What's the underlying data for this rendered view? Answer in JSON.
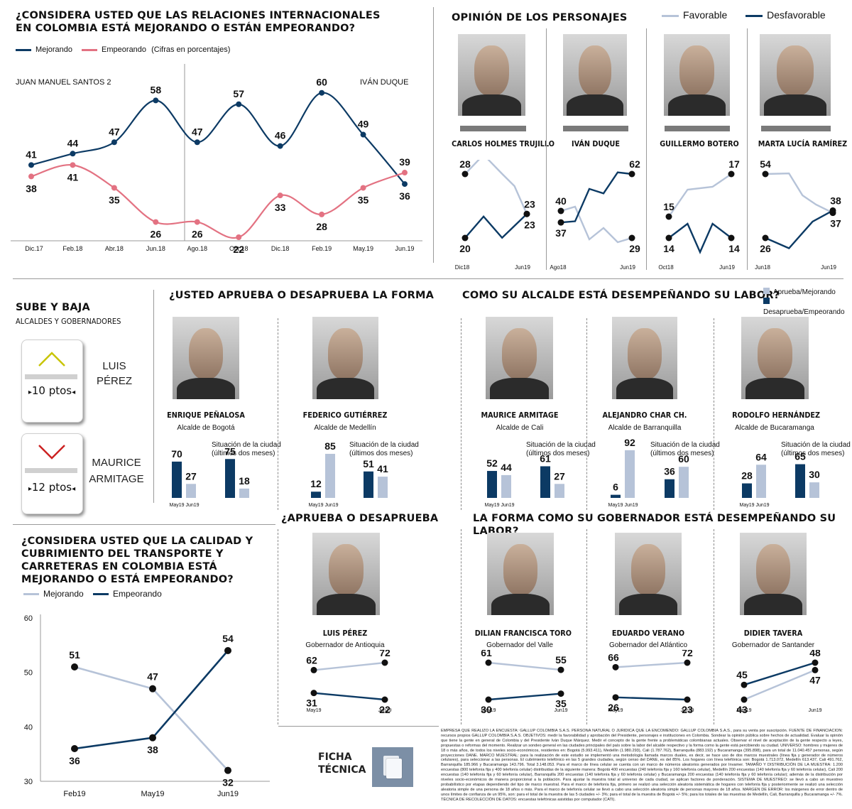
{
  "relations": {
    "title_line1": "¿CONSIDERA USTED QUE LAS RELACIONES INTERNACIONALES",
    "title_line2": "EN COLOMBIA ESTÁ MEJORANDO O ESTÁN EMPEORANDO?",
    "legend_mejorando": "Mejorando",
    "legend_empeorando": "Empeorando",
    "legend_note": "(Cifras en porcentajes)",
    "period_left": "JUAN MANUEL SANTOS 2",
    "period_right": "IVÁN DUQUE"
  },
  "personajes": {
    "title": "OPINIÓN DE LOS PERSONAJES",
    "legend_favorable": "Favorable",
    "legend_desfavorable": "Desfavorable",
    "people": [
      {
        "name": "CARLOS HOLMES TRUJILLO",
        "x_start": "Dic18",
        "x_end": "Jun19"
      },
      {
        "name": "IVÁN DUQUE",
        "x_start": "Ago18",
        "x_end": "Jun19"
      },
      {
        "name": "GUILLERMO BOTERO",
        "x_start": "Oct18",
        "x_end": "Jun19"
      },
      {
        "name": "MARTA LUCÍA RAMÍREZ",
        "x_start": "Jun18",
        "x_end": "Jun19"
      }
    ]
  },
  "subebaja": {
    "title": "SUBE Y BAJA",
    "subtitle": "ALCALDES Y GOBERNADORES",
    "up_value": "10 ptos",
    "up_name_1": "LUIS",
    "up_name_2": "PÉREZ",
    "down_value": "12 ptos",
    "down_name_1": "MAURICE",
    "down_name_2": "ARMITAGE"
  },
  "forma": {
    "title": "¿USTED APRUEBA O DESAPRUEBA LA FORMA",
    "title2": "COMO SU ALCALDE ESTÁ DESEMPEÑANDO SU LABOR?",
    "legend_aprueba": "Aprueba/Mejorando",
    "legend_desaprueba": "Desaprueba/Empeorando",
    "situacion_1": "Situación de la ciudad",
    "situacion_2": "(últimos dos meses)",
    "label_may": "May19",
    "label_jun": "Jun19",
    "mayors": [
      {
        "name": "ENRIQUE PEÑALOSA",
        "role": "Alcalde de Bogotá"
      },
      {
        "name": "FEDERICO GUTIÉRREZ",
        "role": "Alcalde de Medellín"
      },
      {
        "name": "MAURICE ARMITAGE",
        "role": "Alcalde de Cali"
      },
      {
        "name": "ALEJANDRO CHAR CH.",
        "role": "Alcalde de Barranquilla"
      },
      {
        "name": "RODOLFO HERNÁNDEZ",
        "role": "Alcalde de Bucaramanga"
      }
    ]
  },
  "gobernador": {
    "title_left": "¿APRUEBA O DESAPRUEBA",
    "title_right": "LA FORMA COMO SU GOBERNADOR  ESTÁ DESEMPEÑANDO SU LABOR?",
    "label_may": "May19",
    "label_jun": "Jun19",
    "governors": [
      {
        "name": "LUIS PÉREZ",
        "role": "Gobernador de Antioquia"
      },
      {
        "name": "DILIAN FRANCISCA TORO",
        "role": "Gobernador del Valle"
      },
      {
        "name": "EDUARDO VERANO",
        "role": "Gobernador del Atlántico"
      },
      {
        "name": "DIDIER TAVERA",
        "role": "Gobernador de Santander"
      }
    ]
  },
  "transporte": {
    "title_line1": "¿CONSIDERA USTED QUE LA CALIDAD Y",
    "title_line2": "CUBRIMIENTO DEL TRANSPORTE Y",
    "title_line3": "CARRETERAS EN COLOMBIA ESTÁ",
    "title_line4": "MEJORANDO O ESTÁ EMPEORANDO?",
    "legend_mejorando": "Mejorando",
    "legend_empeorando": "Empeorando"
  },
  "ficha": {
    "label_1": "FICHA",
    "label_2": "TÉCNICA",
    "text": "EMPRESA QUE REALIZÓ LA ENCUESTA: GALLUP COLOMBIA S.A.S. PERSONA NATURAL O JURÍDICA QUE LA ENCOMENDÓ: GALLUP COLOMBIA S.A.S., para su venta por suscripción. FUENTE DE FINANCIACIÓN: recursos propios GALLUP COLOMBIA S.A.S. OBJETIVOS: medir la favorabilidad y aprobación del Presidente, personajes e instituciones en Colombia. Sondear la opinión pública sobre hechos de actualidad. Evaluar la opinión que tiene la gente en general de Colombia y del Presidente Iván Duque Márquez. Medir el concepto de la gente frente a problemáticas colombianas actuales. Observar el nivel de aceptación de la gente respecto a leyes, propuestas o reformas del momento. Realizar un sondeo general en las ciudades principales del país sobre la labor del alcalde respectivo y la forma como la gente está percibiendo su ciudad. UNIVERSO: hombres y mujeres de 18 o más años, de todos los niveles socio-económicos, residentes en: Bogotá (5.993.411), Medellín (1.980.293), Cali (1.787.762), Barranquilla (883.192) y Bucaramanga (395.898), para un total de 11.040.457 personas, según proyecciones DANE. MARCO MUESTRAL: para la realización de este estudio se implementó una metodología llamada marcos duales, es decir, se hace uso de dos marcos muestrales (línea fija y generador de números celulares), para seleccionar a las personas. El cubrimiento telefónico en las 5 grandes ciudades, según censo del DANE, es del 85%. Los hogares con línea telefónica son: Bogotá 1.713.072, Medellín 613.437, Cali 491.762, Barranquilla 185.966 y Bucaramanga 143.796. Total 3.148.053. Para el marco de línea celular se cuenta con un marco de números aleatorios generados por Invamer. TAMAÑO Y DISTRIBUCIÓN DE LA MUESTRA: 1.200 encuestas (800 telefonía fija y 400 telefonía celular) distribuidas de la siguiente manera: Bogotá 400 encuestas (240 telefonía fija y 160 telefonía celular), Medellín 200 encuestas (140 telefonía fija y 60 telefonía celular), Cali 200 encuestas (140 telefonía fija y 60 telefonía celular), Barranquilla 200 encuestas (140 telefonía fija y 60 telefonía celular) y Bucaramanga 200 encuestas (140 telefonía fija y 60 telefonía celular); además de la distribución por niveles socio-económicos de manera proporcional a la población. Para ajustar la muestra total al universo de cada ciudad, se aplican factores de ponderación. SISTEMA DE MUESTREO: se llevó a cabo un muestreo probabilístico por etapas dependiendo del tipo de marco muestral. Para el marco de telefonía fija, primero se realizó una selección aleatoria sistemática de hogares con telefonía fija y posteriormente se realizó una selección aleatoria simple de una persona de 18 años o más. Para el marco de telefonía celular se llevó a cabo una selección aleatoria simple de personas mayores de 18 años. MARGEN DE ERROR: los márgenes de error dentro de unos límites de confianza de un 95%, son: para el total de la muestra de las 5 ciudades +/- 3%; para el total de la muestra de Bogotá +/- 5%; para los totales de las muestras de Medellín, Cali, Barranquilla y Bucaramanga +/- 7%. TÉCNICA DE RECOLECCIÓN DE DATOS: encuestas telefónicas asistidas por computador (CATI)."
  },
  "colors": {
    "dark": "#0c3a64",
    "light": "#b6c3d8",
    "pink": "#e37282",
    "yellow": "#c8c400",
    "red": "#cc2222"
  },
  "chart_data": [
    {
      "id": "relaciones",
      "type": "line",
      "categories": [
        "Dic.17",
        "Feb.18",
        "Abr.18",
        "Jun.18",
        "Ago.18",
        "Oct.18",
        "Dic.18",
        "Feb.19",
        "May.19",
        "Jun.19"
      ],
      "series": [
        {
          "name": "Mejorando",
          "values": [
            41,
            44,
            47,
            58,
            47,
            57,
            46,
            60,
            49,
            36
          ]
        },
        {
          "name": "Empeorando",
          "values": [
            38,
            41,
            35,
            26,
            26,
            22,
            33,
            28,
            35,
            39
          ]
        }
      ]
    },
    {
      "id": "personajes",
      "type": "line",
      "panels": [
        {
          "name": "CARLOS HOLMES TRUJILLO",
          "favorable_start": 28,
          "favorable_end": 23,
          "desfavorable_start": 20,
          "desfavorable_end": 23
        },
        {
          "name": "IVÁN DUQUE",
          "favorable_start": 40,
          "favorable_end": 29,
          "desfavorable_start": 37,
          "desfavorable_end": 62
        },
        {
          "name": "GUILLERMO BOTERO",
          "favorable_start": 15,
          "favorable_end": 17,
          "desfavorable_start": 14,
          "desfavorable_end": 14
        },
        {
          "name": "MARTA LUCÍA RAMÍREZ",
          "favorable_start": 54,
          "favorable_end": 37,
          "desfavorable_start": 26,
          "desfavorable_end": 38
        }
      ]
    },
    {
      "id": "alcaldes",
      "type": "bar",
      "categories": [
        "May19",
        "Jun19"
      ],
      "panels": [
        {
          "name": "ENRIQUE PEÑALOSA",
          "forma": [
            70,
            27
          ],
          "situacion": [
            75,
            18
          ]
        },
        {
          "name": "FEDERICO GUTIÉRREZ",
          "forma": [
            12,
            85
          ],
          "situacion": [
            51,
            41
          ]
        },
        {
          "name": "MAURICE ARMITAGE",
          "forma": [
            52,
            44
          ],
          "situacion": [
            61,
            27
          ]
        },
        {
          "name": "ALEJANDRO CHAR CH.",
          "forma": [
            6,
            92
          ],
          "situacion": [
            36,
            60
          ]
        },
        {
          "name": "RODOLFO HERNÁNDEZ",
          "forma": [
            28,
            64
          ],
          "situacion": [
            65,
            30
          ]
        }
      ]
    },
    {
      "id": "gobernadores",
      "type": "line",
      "categories": [
        "May19",
        "Jun19"
      ],
      "panels": [
        {
          "name": "LUIS PÉREZ",
          "aprueba": [
            62,
            72
          ],
          "desaprueba": [
            31,
            22
          ]
        },
        {
          "name": "DILIAN FRANCISCA TORO",
          "aprueba": [
            61,
            55
          ],
          "desaprueba": [
            30,
            35
          ]
        },
        {
          "name": "EDUARDO VERANO",
          "aprueba": [
            66,
            72
          ],
          "desaprueba": [
            26,
            23
          ]
        },
        {
          "name": "DIDIER TAVERA",
          "aprueba": [
            43,
            47
          ],
          "desaprueba": [
            45,
            48
          ]
        }
      ]
    },
    {
      "id": "transporte",
      "type": "line",
      "categories": [
        "Feb19",
        "May19",
        "Jun19"
      ],
      "ylim": [
        30,
        60
      ],
      "yticks": [
        30,
        40,
        50,
        60
      ],
      "series": [
        {
          "name": "Mejorando",
          "values": [
            51,
            47,
            32
          ]
        },
        {
          "name": "Empeorando",
          "values": [
            36,
            38,
            54
          ]
        }
      ]
    }
  ]
}
